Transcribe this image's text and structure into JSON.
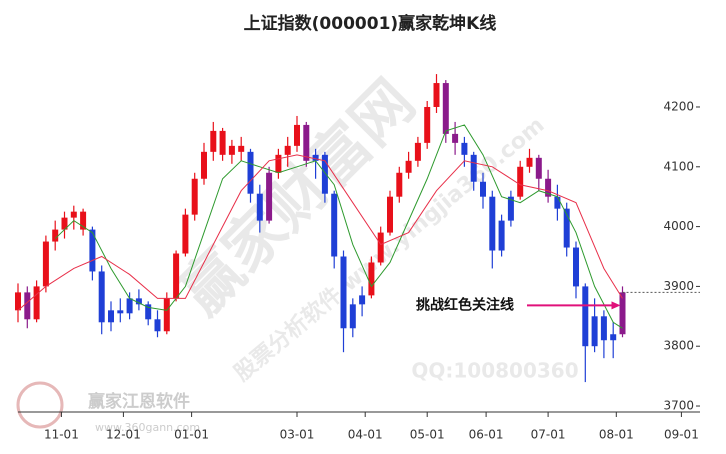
{
  "chart_data": {
    "type": "candlestick",
    "title": "上证指数(000001)赢家乾坤K线",
    "annotation": "挑战红色关注线",
    "watermarks": [
      "赢家财富网",
      "股票分析软件 www.yingjia360.com",
      "QQ:100800360",
      "赢家江恩软件",
      "www.360gann.com"
    ],
    "x": [
      -14,
      -11,
      -8,
      -5,
      -2,
      1,
      4,
      7,
      10,
      13,
      16,
      19,
      22,
      25,
      28,
      31,
      34,
      37,
      40,
      43,
      46,
      49,
      52,
      55,
      58,
      61,
      64,
      67,
      70,
      73,
      76,
      79,
      82,
      85,
      88,
      91,
      94,
      97,
      100,
      103,
      106,
      109,
      112,
      115,
      118,
      121,
      124,
      127,
      130,
      133,
      136,
      139,
      142,
      145,
      148,
      151,
      154,
      157,
      160,
      163,
      166,
      169,
      172,
      175,
      178,
      181
    ],
    "open": [
      3860,
      3890,
      3845,
      3900,
      3975,
      3995,
      4015,
      4025,
      3995,
      3925,
      3840,
      3860,
      3855,
      3880,
      3870,
      3845,
      3825,
      3880,
      3955,
      4020,
      4080,
      4125,
      4160,
      4120,
      4135,
      4125,
      4055,
      4010,
      4090,
      4120,
      4135,
      4170,
      4110,
      4120,
      4055,
      3950,
      3830,
      3870,
      3885,
      3940,
      3990,
      4050,
      4090,
      4110,
      4140,
      4200,
      4240,
      4155,
      4140,
      4120,
      4075,
      4050,
      3960,
      4010,
      4050,
      4100,
      4115,
      4080,
      4050,
      4030,
      3965,
      3900,
      3800,
      3850,
      3810,
      3820
    ],
    "high": [
      3905,
      3900,
      3910,
      3985,
      4010,
      4025,
      4035,
      4030,
      4000,
      3935,
      3875,
      3880,
      3890,
      3895,
      3875,
      3860,
      3890,
      3960,
      4030,
      4090,
      4140,
      4175,
      4165,
      4145,
      4150,
      4130,
      4070,
      4100,
      4130,
      4150,
      4185,
      4175,
      4130,
      4125,
      4060,
      3960,
      3880,
      3900,
      3950,
      4000,
      4060,
      4100,
      4125,
      4150,
      4210,
      4255,
      4245,
      4175,
      4150,
      4125,
      4090,
      4060,
      4020,
      4060,
      4110,
      4130,
      4120,
      4095,
      4070,
      4040,
      3975,
      3905,
      3880,
      3860,
      3840,
      3900
    ],
    "low": [
      3840,
      3830,
      3840,
      3890,
      3960,
      3980,
      3995,
      3985,
      3910,
      3820,
      3825,
      3840,
      3845,
      3860,
      3835,
      3815,
      3820,
      3875,
      3950,
      4010,
      4070,
      4110,
      4110,
      4105,
      4110,
      4040,
      3990,
      4005,
      4080,
      4100,
      4125,
      4100,
      4080,
      4040,
      3930,
      3790,
      3815,
      3850,
      3880,
      3935,
      3985,
      4040,
      4080,
      4100,
      4130,
      4190,
      4140,
      4120,
      4100,
      4060,
      4030,
      3930,
      3950,
      4000,
      4045,
      4090,
      4060,
      4040,
      4010,
      3950,
      3880,
      3740,
      3790,
      3780,
      3780,
      3815
    ],
    "close": [
      3890,
      3845,
      3900,
      3975,
      3995,
      4015,
      4025,
      3995,
      3925,
      3840,
      3860,
      3855,
      3880,
      3870,
      3845,
      3825,
      3880,
      3955,
      4020,
      4080,
      4125,
      4160,
      4120,
      4135,
      4125,
      4055,
      4010,
      4090,
      4120,
      4135,
      4170,
      4110,
      4120,
      4055,
      3950,
      3830,
      3870,
      3885,
      3940,
      3990,
      4050,
      4090,
      4110,
      4140,
      4200,
      4240,
      4155,
      4140,
      4120,
      4075,
      4050,
      3960,
      4010,
      4050,
      4100,
      4115,
      4080,
      4050,
      4030,
      3965,
      3900,
      3800,
      3850,
      3810,
      3820,
      3890
    ],
    "colors": [
      "#e8101a",
      "#8b1a8b",
      "#e8101a",
      "#e8101a",
      "#e8101a",
      "#e8101a",
      "#e8101a",
      "#e8101a",
      "#1f3fd6",
      "#1f3fd6",
      "#1f3fd6",
      "#1f3fd6",
      "#1f3fd6",
      "#1f3fd6",
      "#1f3fd6",
      "#1f3fd6",
      "#e8101a",
      "#e8101a",
      "#e8101a",
      "#e8101a",
      "#e8101a",
      "#e8101a",
      "#e8101a",
      "#e8101a",
      "#e8101a",
      "#1f3fd6",
      "#1f3fd6",
      "#8b1a8b",
      "#e8101a",
      "#e8101a",
      "#e8101a",
      "#8b1a8b",
      "#1f3fd6",
      "#1f3fd6",
      "#1f3fd6",
      "#1f3fd6",
      "#1f3fd6",
      "#1f3fd6",
      "#e8101a",
      "#e8101a",
      "#e8101a",
      "#e8101a",
      "#e8101a",
      "#e8101a",
      "#e8101a",
      "#e8101a",
      "#8b1a8b",
      "#8b1a8b",
      "#1f3fd6",
      "#1f3fd6",
      "#1f3fd6",
      "#1f3fd6",
      "#1f3fd6",
      "#1f3fd6",
      "#e8101a",
      "#e8101a",
      "#8b1a8b",
      "#8b1a8b",
      "#1f3fd6",
      "#1f3fd6",
      "#1f3fd6",
      "#1f3fd6",
      "#1f3fd6",
      "#1f3fd6",
      "#1f3fd6",
      "#8b1a8b"
    ],
    "lines": [
      {
        "color": "#2e9a2e",
        "x": [
          -2,
          4,
          10,
          16,
          22,
          28,
          34,
          40,
          46,
          52,
          58,
          64,
          70,
          76,
          82,
          88,
          94,
          100,
          106,
          112,
          118,
          124,
          130,
          136,
          142,
          148,
          154,
          160,
          166,
          172,
          178,
          181
        ],
        "values": [
          3980,
          4010,
          3990,
          3930,
          3880,
          3865,
          3860,
          3900,
          3990,
          4080,
          4110,
          4100,
          4090,
          4100,
          4110,
          4070,
          3970,
          3900,
          3940,
          4010,
          4080,
          4160,
          4170,
          4120,
          4050,
          4040,
          4060,
          4050,
          3990,
          3900,
          3840,
          3830
        ]
      },
      {
        "color": "#e8304a",
        "x": [
          -14,
          -5,
          4,
          13,
          22,
          31,
          40,
          49,
          58,
          67,
          76,
          85,
          94,
          103,
          112,
          121,
          130,
          139,
          148,
          157,
          166,
          175,
          181
        ],
        "values": [
          3860,
          3900,
          3930,
          3950,
          3920,
          3880,
          3880,
          3970,
          4060,
          4110,
          4120,
          4110,
          4040,
          3970,
          3990,
          4060,
          4110,
          4100,
          4070,
          4060,
          4040,
          3930,
          3880
        ]
      }
    ],
    "level": 3890,
    "xlim": [
      -14,
      206
    ],
    "xticks": [
      {
        "value": 0,
        "label": "11-01"
      },
      {
        "value": 20,
        "label": "12-01"
      },
      {
        "value": 42,
        "label": "01-01"
      },
      {
        "value": 76,
        "label": "03-01"
      },
      {
        "value": 98,
        "label": "04-01"
      },
      {
        "value": 118,
        "label": "05-01"
      },
      {
        "value": 137,
        "label": "06-01"
      },
      {
        "value": 157,
        "label": "07-01"
      },
      {
        "value": 179,
        "label": "08-01"
      },
      {
        "value": 200,
        "label": "09-01"
      }
    ],
    "ylim": [
      3690,
      4312
    ],
    "yticks": [
      3700,
      3800,
      3900,
      4000,
      4100,
      4200
    ]
  }
}
